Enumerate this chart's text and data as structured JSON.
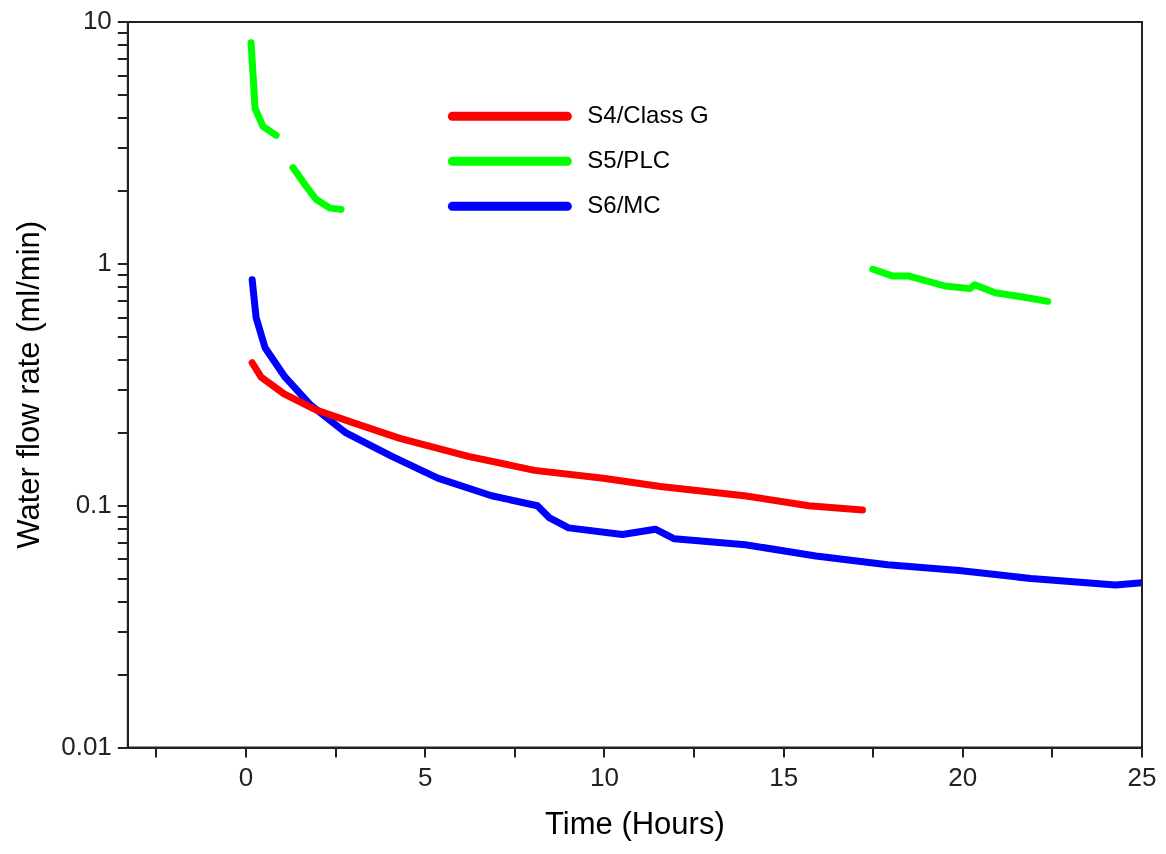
{
  "chart_data": {
    "type": "line",
    "xlabel": "Time (Hours)",
    "ylabel": "Water flow rate (ml/min)",
    "log": "y",
    "grid": false,
    "legend": "top",
    "marker": "none",
    "line_style": "solid",
    "xlim": [
      -3.3,
      25
    ],
    "xticks": [
      {
        "value": -2.5,
        "label": null
      },
      0,
      {
        "value": 2.5,
        "label": null
      },
      5,
      {
        "value": 7.5,
        "label": null
      },
      10,
      {
        "value": 12.5,
        "label": null
      },
      15,
      {
        "value": 17.5,
        "label": null
      },
      20,
      {
        "value": 22.5,
        "label": null
      },
      25
    ],
    "ylim": [
      0.01,
      10
    ],
    "yticks": [
      0.01,
      {
        "value": 0.02,
        "label": null
      },
      {
        "value": 0.03,
        "label": null
      },
      {
        "value": 0.04,
        "label": null
      },
      {
        "value": 0.05,
        "label": null
      },
      {
        "value": 0.06,
        "label": null
      },
      {
        "value": 0.07,
        "label": null
      },
      {
        "value": 0.08,
        "label": null
      },
      {
        "value": 0.09,
        "label": null
      },
      0.1,
      {
        "value": 0.2,
        "label": null
      },
      {
        "value": 0.3,
        "label": null
      },
      {
        "value": 0.4,
        "label": null
      },
      {
        "value": 0.5,
        "label": null
      },
      {
        "value": 0.6,
        "label": null
      },
      {
        "value": 0.7,
        "label": null
      },
      {
        "value": 0.8,
        "label": null
      },
      {
        "value": 0.9,
        "label": null
      },
      1,
      {
        "value": 2,
        "label": null
      },
      {
        "value": 3,
        "label": null
      },
      {
        "value": 4,
        "label": null
      },
      {
        "value": 5,
        "label": null
      },
      {
        "value": 6,
        "label": null
      },
      {
        "value": 7,
        "label": null
      },
      {
        "value": 8,
        "label": null
      },
      {
        "value": 9,
        "label": null
      },
      10
    ],
    "series": [
      {
        "name": "S4/Class G",
        "color": "#ff0000",
        "x": [
          0.17,
          0.42,
          1.06,
          1.92,
          3.0,
          4.29,
          6.2,
          8.05,
          9.97,
          11.56,
          13.9,
          15.7,
          17.2
        ],
        "values": [
          0.39,
          0.34,
          0.29,
          0.25,
          0.22,
          0.19,
          0.16,
          0.14,
          0.13,
          0.12,
          0.11,
          0.1,
          0.096
        ]
      },
      {
        "name": "S5/PLC",
        "color": "#00ff00",
        "x": [
          0.14,
          0.2,
          0.25,
          0.47,
          0.84,
          1.1,
          1.31,
          1.67,
          1.95,
          2.34,
          2.65,
          10,
          17.49,
          18.05,
          18.5,
          19.5,
          20.2,
          20.33,
          20.9,
          21.67,
          22.37
        ],
        "values": [
          8.2,
          5.9,
          4.4,
          3.7,
          3.4,
          null,
          2.5,
          2.1,
          1.85,
          1.7,
          1.68,
          null,
          0.95,
          0.89,
          0.89,
          0.81,
          0.79,
          0.82,
          0.76,
          0.73,
          0.7
        ]
      },
      {
        "name": "S6/MC",
        "color": "#0000ff",
        "x": [
          0.17,
          0.28,
          0.53,
          1.09,
          1.81,
          2.79,
          4.07,
          5.35,
          6.85,
          8.13,
          8.47,
          9.0,
          10.5,
          11.42,
          11.95,
          13.93,
          15.9,
          17.9,
          19.9,
          21.9,
          24.26,
          25
        ],
        "values": [
          0.86,
          0.6,
          0.45,
          0.34,
          0.26,
          0.2,
          0.16,
          0.13,
          0.11,
          0.1,
          0.089,
          0.081,
          0.076,
          0.08,
          0.073,
          0.069,
          0.062,
          0.057,
          0.054,
          0.05,
          0.047,
          0.048
        ]
      }
    ]
  }
}
